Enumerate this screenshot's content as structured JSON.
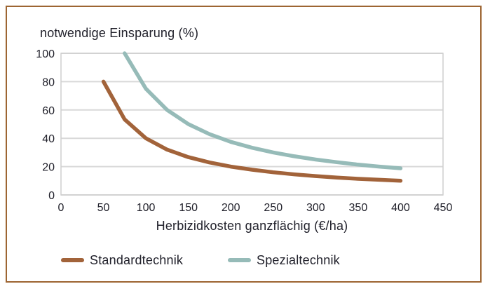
{
  "figure": {
    "border_color": "#9D6532",
    "background_color": "#FFFFFF",
    "text_color": "#21212B"
  },
  "chart_data": {
    "type": "line",
    "title": "notwendige Einsparung (%)",
    "xlabel": "Herbizidkosten ganzflächig (€/ha)",
    "ylabel": "",
    "xlim": [
      0,
      450
    ],
    "ylim": [
      0,
      100
    ],
    "x_ticks": [
      0,
      50,
      100,
      150,
      200,
      250,
      300,
      350,
      400,
      450
    ],
    "y_ticks": [
      0,
      20,
      40,
      60,
      80,
      100
    ],
    "grid": "horizontal",
    "gridline_color": "#D9D9D9",
    "plot_border_color": "#CFCFCF",
    "legend_position": "bottom",
    "series": [
      {
        "name": "Standardtechnik",
        "color": "#A2633A",
        "x": [
          50,
          75,
          100,
          125,
          150,
          175,
          200,
          225,
          250,
          275,
          300,
          325,
          350,
          375,
          400
        ],
        "y": [
          80,
          53.3,
          40,
          32,
          26.7,
          22.9,
          20,
          17.8,
          16,
          14.5,
          13.3,
          12.3,
          11.4,
          10.7,
          10
        ]
      },
      {
        "name": "Spezialtechnik",
        "color": "#96BBB8",
        "x": [
          75,
          100,
          125,
          150,
          175,
          200,
          225,
          250,
          275,
          300,
          325,
          350,
          375,
          400
        ],
        "y": [
          100,
          75,
          60,
          50,
          42.9,
          37.5,
          33.3,
          30,
          27.3,
          25,
          23.1,
          21.4,
          20,
          18.8
        ]
      }
    ]
  }
}
